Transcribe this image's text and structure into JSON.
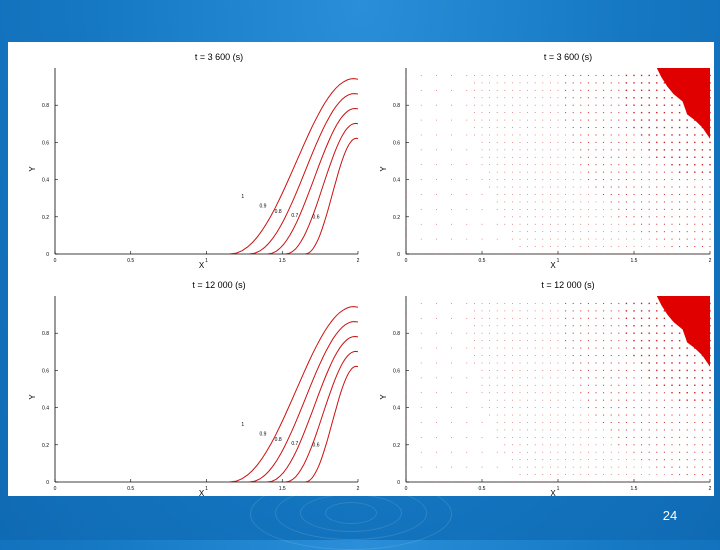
{
  "slide": {
    "page_number": "24"
  },
  "panels": [
    {
      "id": "top-left",
      "title": "t = 3 600 (s)",
      "xlabel": "X",
      "ylabel": "Y",
      "xticks": [
        "0",
        "0.5",
        "1",
        "1.5",
        "2"
      ],
      "yticks": [
        "0",
        "0.2",
        "0.4",
        "0.6",
        "0.8"
      ],
      "contour_labels": [
        "1",
        "0.9",
        "0.8",
        "0.7",
        "0.6"
      ]
    },
    {
      "id": "top-right",
      "title": "t = 3 600 (s)",
      "xlabel": "X",
      "ylabel": "Y",
      "xticks": [
        "0",
        "0.5",
        "1",
        "1.5",
        "2"
      ],
      "yticks": [
        "0",
        "0.2",
        "0.4",
        "0.6",
        "0.8"
      ]
    },
    {
      "id": "bottom-left",
      "title": "t = 12 000 (s)",
      "xlabel": "X",
      "ylabel": "Y",
      "xticks": [
        "0",
        "0.5",
        "1",
        "1.5",
        "2"
      ],
      "yticks": [
        "0",
        "0.2",
        "0.4",
        "0.6",
        "0.8"
      ],
      "contour_labels": [
        "1",
        "0.9",
        "0.8",
        "0.7",
        "0.6"
      ]
    },
    {
      "id": "bottom-right",
      "title": "t = 12 000 (s)",
      "xlabel": "X",
      "ylabel": "Y",
      "xticks": [
        "0",
        "0.5",
        "1",
        "1.5",
        "2"
      ],
      "yticks": [
        "0",
        "0.2",
        "0.4",
        "0.6",
        "0.8"
      ]
    }
  ],
  "colors": {
    "curve": "#cc1111",
    "grid_dot": "#d02020",
    "hot_region": "#e00000",
    "background": "#1577c2"
  }
}
